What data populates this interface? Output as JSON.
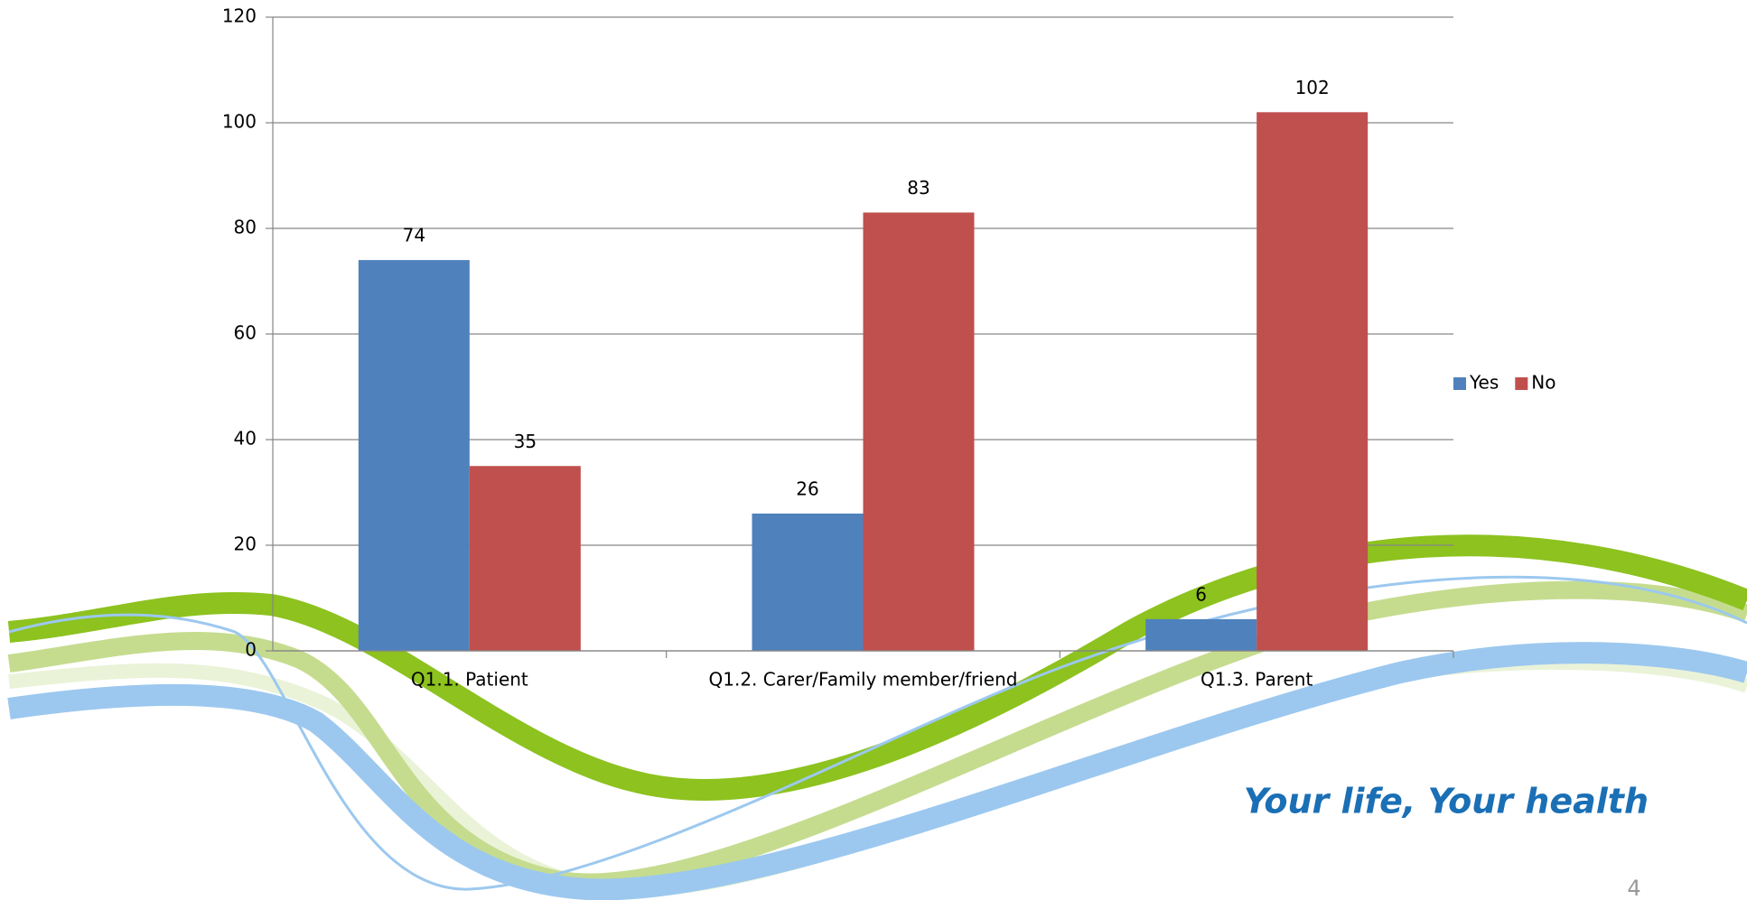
{
  "chart_data": {
    "type": "bar",
    "categories": [
      "Q1.1. Patient",
      "Q1.2. Carer/Family member/friend",
      "Q1.3. Parent"
    ],
    "series": [
      {
        "name": "Yes",
        "color": "#4f81bd",
        "values": [
          74,
          26,
          6
        ]
      },
      {
        "name": "No",
        "color": "#c0504d",
        "values": [
          35,
          83,
          102
        ]
      }
    ],
    "ylim": [
      0,
      120
    ],
    "yticks": [
      0,
      20,
      40,
      60,
      80,
      100,
      120
    ],
    "grid": true,
    "legend": "right"
  },
  "slide": {
    "tagline": "Your life, Your health",
    "page_number": "4"
  }
}
